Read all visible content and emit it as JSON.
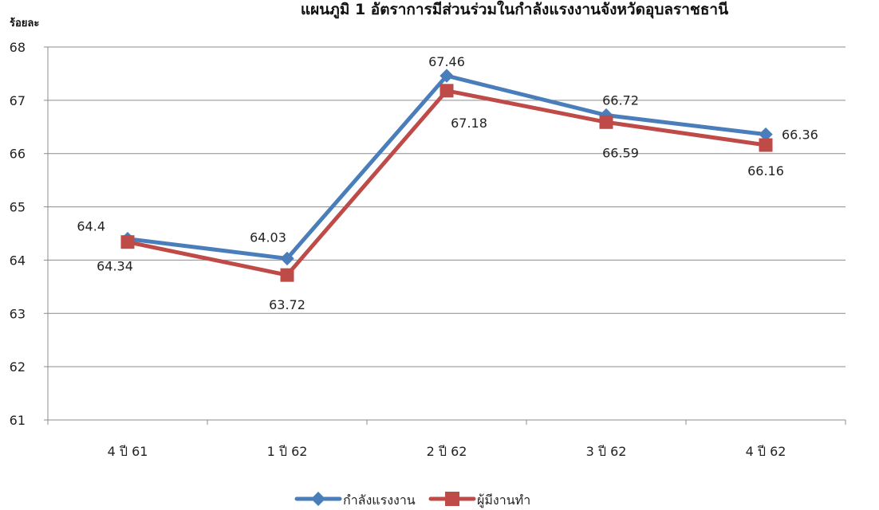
{
  "chart_data": {
    "type": "line",
    "title": "แผนภูมิ 1 อัตราการมีส่วนร่วมในกำลังแรงงานจังหวัดอุบลราชธานี",
    "ylabel": "ร้อยละ",
    "xlabel": "",
    "categories": [
      "4 ปี 61",
      "1 ปี 62",
      "2 ปี 62",
      "3 ปี 62",
      "4 ปี 62"
    ],
    "ylim": [
      61,
      68
    ],
    "yticks": [
      61,
      62,
      63,
      64,
      65,
      66,
      67,
      68
    ],
    "grid": true,
    "legend_position": "bottom",
    "series": [
      {
        "name": "กำลังแรงงาน",
        "marker": "diamond",
        "color": "#4a7ebb",
        "values": [
          64.4,
          64.03,
          67.46,
          66.72,
          66.36
        ],
        "labels": [
          "64.4",
          "64.03",
          "67.46",
          "66.72",
          "66.36"
        ]
      },
      {
        "name": "ผู้มีงานทำ",
        "marker": "square",
        "color": "#be4b48",
        "values": [
          64.34,
          63.72,
          67.18,
          66.59,
          66.16
        ],
        "labels": [
          "64.34",
          "63.72",
          "67.18",
          "66.59",
          "66.16"
        ]
      }
    ]
  }
}
